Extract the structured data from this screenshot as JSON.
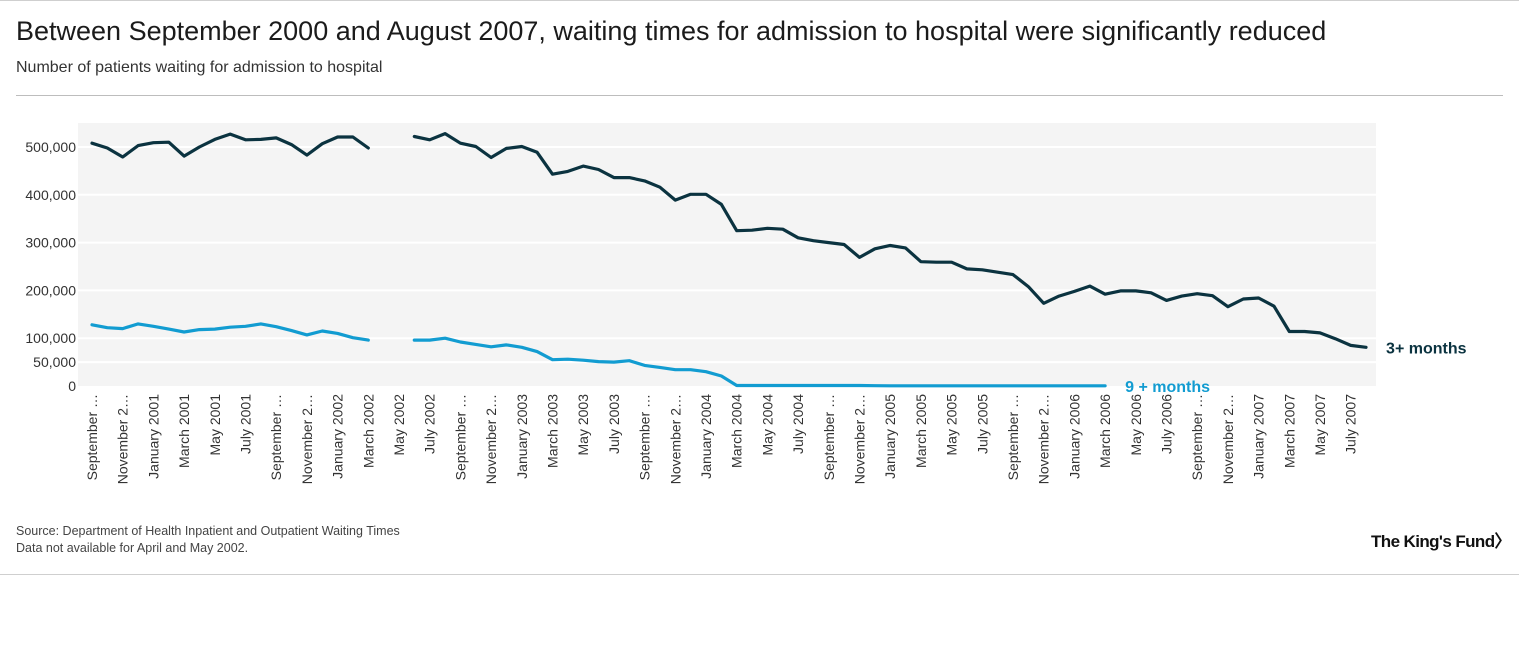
{
  "header": {
    "title": "Between September 2000 and August 2007, waiting times for admission to hospital were significantly reduced",
    "subtitle": "Number of patients waiting for admission to hospital"
  },
  "footer": {
    "source": "Source: Department of Health Inpatient and Outpatient Waiting Times",
    "note": "Data not available for April and May 2002.",
    "logo": "The King's Fund"
  },
  "colors": {
    "series_3plus": "#0b3340",
    "series_9plus": "#129cd1",
    "plot_background": "#f4f4f4",
    "gridline": "#ffffff"
  },
  "chart_data": {
    "type": "line",
    "title": "Between September 2000 and August 2007, waiting times for admission to hospital were significantly reduced",
    "subtitle": "Number of patients waiting for admission to hospital",
    "xlabel": "",
    "ylabel": "",
    "ylim": [
      0,
      550000
    ],
    "yticks": [
      0,
      50000,
      100000,
      200000,
      300000,
      400000,
      500000
    ],
    "ytick_labels": [
      "0",
      "50,000",
      "100,000",
      "200,000",
      "300,000",
      "400,000",
      "500,000"
    ],
    "grid": true,
    "legend": "inline labels at line ends",
    "x": [
      "Sep 2000",
      "Oct 2000",
      "Nov 2000",
      "Dec 2000",
      "Jan 2001",
      "Feb 2001",
      "Mar 2001",
      "Apr 2001",
      "May 2001",
      "Jun 2001",
      "Jul 2001",
      "Aug 2001",
      "Sep 2001",
      "Oct 2001",
      "Nov 2001",
      "Dec 2001",
      "Jan 2002",
      "Feb 2002",
      "Mar 2002",
      "Apr 2002",
      "May 2002",
      "Jun 2002",
      "Jul 2002",
      "Aug 2002",
      "Sep 2002",
      "Oct 2002",
      "Nov 2002",
      "Dec 2002",
      "Jan 2003",
      "Feb 2003",
      "Mar 2003",
      "Apr 2003",
      "May 2003",
      "Jun 2003",
      "Jul 2003",
      "Aug 2003",
      "Sep 2003",
      "Oct 2003",
      "Nov 2003",
      "Dec 2003",
      "Jan 2004",
      "Feb 2004",
      "Mar 2004",
      "Apr 2004",
      "May 2004",
      "Jun 2004",
      "Jul 2004",
      "Aug 2004",
      "Sep 2004",
      "Oct 2004",
      "Nov 2004",
      "Dec 2004",
      "Jan 2005",
      "Feb 2005",
      "Mar 2005",
      "Apr 2005",
      "May 2005",
      "Jun 2005",
      "Jul 2005",
      "Aug 2005",
      "Sep 2005",
      "Oct 2005",
      "Nov 2005",
      "Dec 2005",
      "Jan 2006",
      "Feb 2006",
      "Mar 2006",
      "Apr 2006",
      "May 2006",
      "Jun 2006",
      "Jul 2006",
      "Aug 2006",
      "Sep 2006",
      "Oct 2006",
      "Nov 2006",
      "Dec 2006",
      "Jan 2007",
      "Feb 2007",
      "Mar 2007",
      "Apr 2007",
      "May 2007",
      "Jun 2007",
      "Jul 2007",
      "Aug 2007"
    ],
    "x_tick_labels": [
      "September …",
      "November 2…",
      "January 2001",
      "March 2001",
      "May 2001",
      "July 2001",
      "September …",
      "November 2…",
      "January 2002",
      "March 2002",
      "May 2002",
      "July 2002",
      "September …",
      "November 2…",
      "January 2003",
      "March 2003",
      "May 2003",
      "July 2003",
      "September …",
      "November 2…",
      "January 2004",
      "March 2004",
      "May 2004",
      "July 2004",
      "September …",
      "November 2…",
      "January 2005",
      "March 2005",
      "May 2005",
      "July 2005",
      "September …",
      "November 2…",
      "January 2006",
      "March 2006",
      "May 2006",
      "July 2006",
      "September …",
      "November 2…",
      "January 2007",
      "March 2007",
      "May 2007",
      "July 2007"
    ],
    "series": [
      {
        "name": "3+ months",
        "values": [
          508000,
          498000,
          479000,
          503000,
          509000,
          510000,
          481000,
          500000,
          516000,
          527000,
          515000,
          516000,
          519000,
          505000,
          483000,
          507000,
          521000,
          521000,
          498000,
          null,
          null,
          522000,
          515000,
          528000,
          508000,
          501000,
          478000,
          497000,
          501000,
          489000,
          443000,
          449000,
          460000,
          453000,
          436000,
          436000,
          429000,
          416000,
          389000,
          401000,
          401000,
          380000,
          325000,
          326000,
          330000,
          328000,
          310000,
          304000,
          300000,
          296000,
          269000,
          287000,
          294000,
          289000,
          260000,
          259000,
          259000,
          245000,
          243000,
          238000,
          233000,
          208000,
          173000,
          188000,
          198000,
          209000,
          192000,
          199000,
          199000,
          195000,
          179000,
          188000,
          193000,
          189000,
          166000,
          182000,
          184000,
          167000,
          114000,
          114000,
          111000,
          99000,
          85000,
          81000
        ]
      },
      {
        "name": "9 + months",
        "values": [
          128000,
          122000,
          120000,
          130000,
          125000,
          119000,
          113000,
          118000,
          119000,
          123000,
          125000,
          130000,
          124000,
          116000,
          107000,
          115000,
          110000,
          101000,
          96000,
          null,
          null,
          96000,
          96000,
          100000,
          92000,
          87000,
          82000,
          86000,
          81000,
          72000,
          55000,
          56000,
          54000,
          51000,
          50000,
          53000,
          43000,
          39000,
          34000,
          34000,
          30000,
          21000,
          1000,
          1000,
          1000,
          1000,
          1000,
          1000,
          1000,
          1000,
          1000,
          600,
          500,
          500,
          500,
          500,
          500,
          500,
          500,
          500,
          500,
          500,
          500,
          500,
          500,
          500,
          500,
          null,
          null,
          null,
          null,
          null,
          null,
          null,
          null,
          null,
          null,
          null,
          null,
          null,
          null,
          null,
          null,
          null
        ]
      }
    ]
  }
}
